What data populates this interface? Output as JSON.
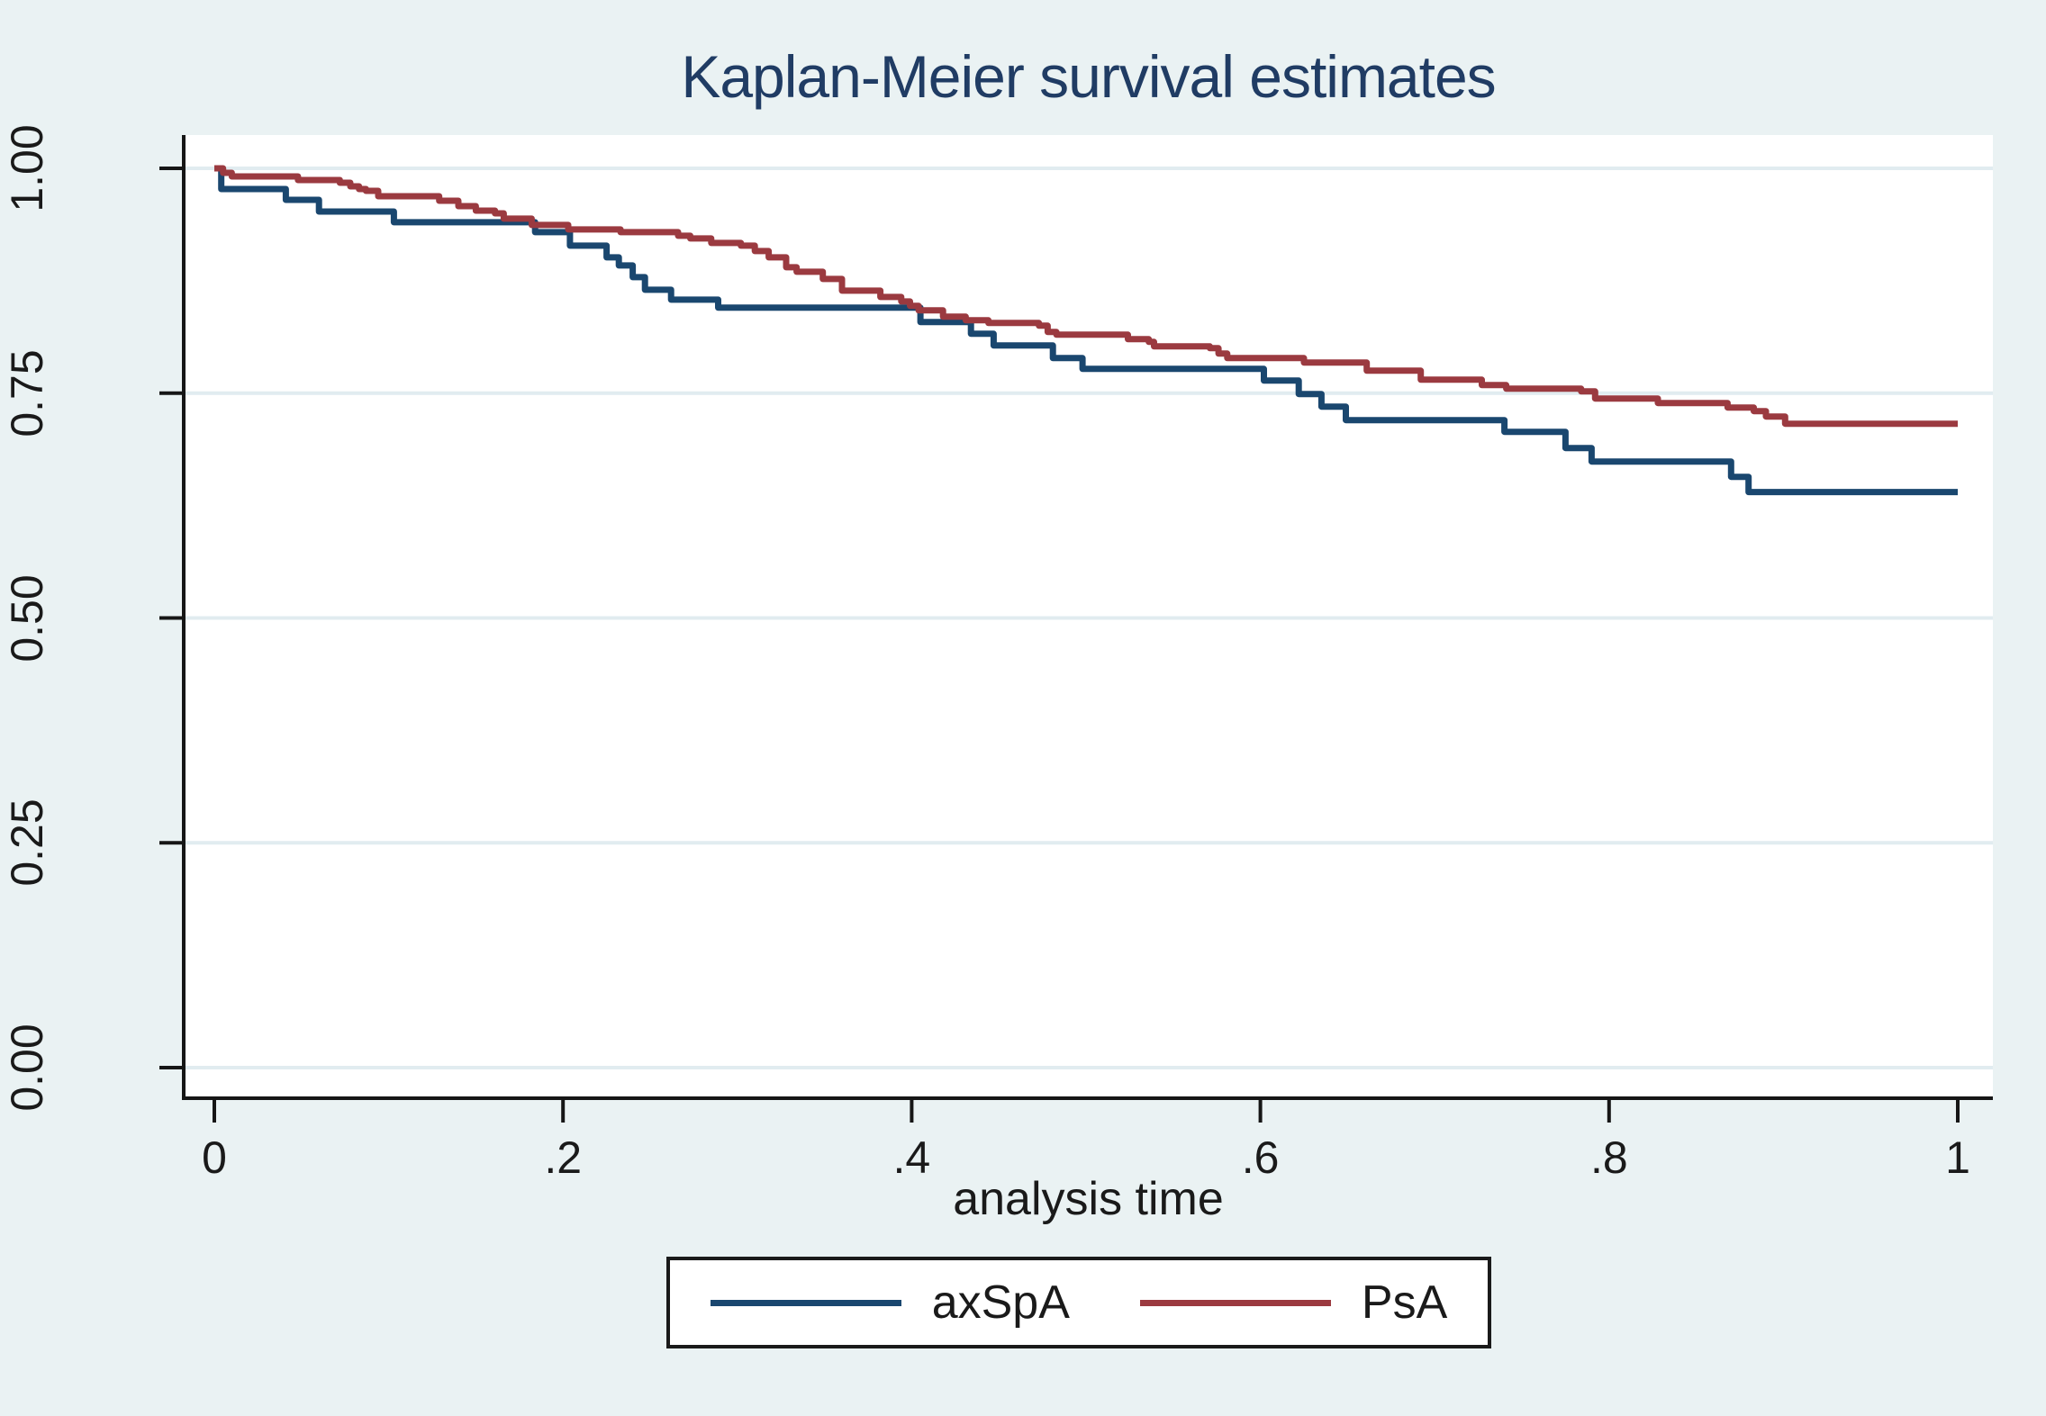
{
  "chart_data": {
    "type": "line",
    "subtype": "kaplan-meier-step",
    "title": "Kaplan-Meier survival estimates",
    "xlabel": "analysis time",
    "ylabel": "",
    "xlim": [
      0,
      1
    ],
    "ylim": [
      0,
      1
    ],
    "grid": "horizontal",
    "legend_position": "bottom-center",
    "x_ticks": [
      {
        "value": 0,
        "label": "0"
      },
      {
        "value": 0.2,
        "label": ".2"
      },
      {
        "value": 0.4,
        "label": ".4"
      },
      {
        "value": 0.6,
        "label": ".6"
      },
      {
        "value": 0.8,
        "label": ".8"
      },
      {
        "value": 1,
        "label": "1"
      }
    ],
    "y_ticks": [
      {
        "value": 0,
        "label": "0.00"
      },
      {
        "value": 0.25,
        "label": "0.25"
      },
      {
        "value": 0.5,
        "label": "0.50"
      },
      {
        "value": 0.75,
        "label": "0.75"
      },
      {
        "value": 1,
        "label": "1.00"
      }
    ],
    "series": [
      {
        "name": "axSpA",
        "color": "#1A476F",
        "points": [
          [
            0,
            1.0
          ],
          [
            0.004,
            0.977
          ],
          [
            0.041,
            0.965
          ],
          [
            0.06,
            0.952
          ],
          [
            0.103,
            0.94
          ],
          [
            0.184,
            0.929
          ],
          [
            0.204,
            0.914
          ],
          [
            0.225,
            0.901
          ],
          [
            0.232,
            0.892
          ],
          [
            0.24,
            0.879
          ],
          [
            0.247,
            0.865
          ],
          [
            0.262,
            0.854
          ],
          [
            0.289,
            0.845
          ],
          [
            0.405,
            0.829
          ],
          [
            0.434,
            0.816
          ],
          [
            0.447,
            0.803
          ],
          [
            0.481,
            0.789
          ],
          [
            0.498,
            0.777
          ],
          [
            0.602,
            0.764
          ],
          [
            0.622,
            0.749
          ],
          [
            0.635,
            0.735
          ],
          [
            0.649,
            0.72
          ],
          [
            0.74,
            0.707
          ],
          [
            0.775,
            0.689
          ],
          [
            0.79,
            0.674
          ],
          [
            0.87,
            0.657
          ],
          [
            0.88,
            0.64
          ],
          [
            1,
            0.64
          ]
        ]
      },
      {
        "name": "PsA",
        "color": "#9B3A40",
        "points": [
          [
            0,
            1.0
          ],
          [
            0.005,
            0.995
          ],
          [
            0.01,
            0.991
          ],
          [
            0.048,
            0.987
          ],
          [
            0.072,
            0.984
          ],
          [
            0.078,
            0.98
          ],
          [
            0.083,
            0.977
          ],
          [
            0.087,
            0.975
          ],
          [
            0.094,
            0.969
          ],
          [
            0.129,
            0.964
          ],
          [
            0.14,
            0.958
          ],
          [
            0.15,
            0.953
          ],
          [
            0.161,
            0.95
          ],
          [
            0.166,
            0.944
          ],
          [
            0.182,
            0.937
          ],
          [
            0.203,
            0.932
          ],
          [
            0.233,
            0.929
          ],
          [
            0.266,
            0.925
          ],
          [
            0.273,
            0.922
          ],
          [
            0.285,
            0.917
          ],
          [
            0.302,
            0.914
          ],
          [
            0.31,
            0.908
          ],
          [
            0.318,
            0.901
          ],
          [
            0.328,
            0.89
          ],
          [
            0.334,
            0.885
          ],
          [
            0.349,
            0.877
          ],
          [
            0.36,
            0.864
          ],
          [
            0.382,
            0.857
          ],
          [
            0.394,
            0.852
          ],
          [
            0.399,
            0.847
          ],
          [
            0.404,
            0.842
          ],
          [
            0.418,
            0.835
          ],
          [
            0.431,
            0.831
          ],
          [
            0.444,
            0.828
          ],
          [
            0.473,
            0.825
          ],
          [
            0.478,
            0.818
          ],
          [
            0.483,
            0.815
          ],
          [
            0.524,
            0.81
          ],
          [
            0.536,
            0.807
          ],
          [
            0.539,
            0.802
          ],
          [
            0.571,
            0.8
          ],
          [
            0.576,
            0.794
          ],
          [
            0.581,
            0.789
          ],
          [
            0.625,
            0.784
          ],
          [
            0.661,
            0.775
          ],
          [
            0.692,
            0.765
          ],
          [
            0.727,
            0.759
          ],
          [
            0.741,
            0.755
          ],
          [
            0.784,
            0.752
          ],
          [
            0.792,
            0.744
          ],
          [
            0.828,
            0.739
          ],
          [
            0.868,
            0.734
          ],
          [
            0.883,
            0.73
          ],
          [
            0.89,
            0.724
          ],
          [
            0.901,
            0.716
          ],
          [
            1,
            0.716
          ]
        ]
      }
    ],
    "colors": {
      "background": "#EAF2F3",
      "plot_background": "#FFFFFF",
      "gridline": "#E1ECF0",
      "axis": "#161616",
      "text": "#1A1A1A",
      "title": "#203C64",
      "legend_border": "#1A1A1A"
    }
  }
}
